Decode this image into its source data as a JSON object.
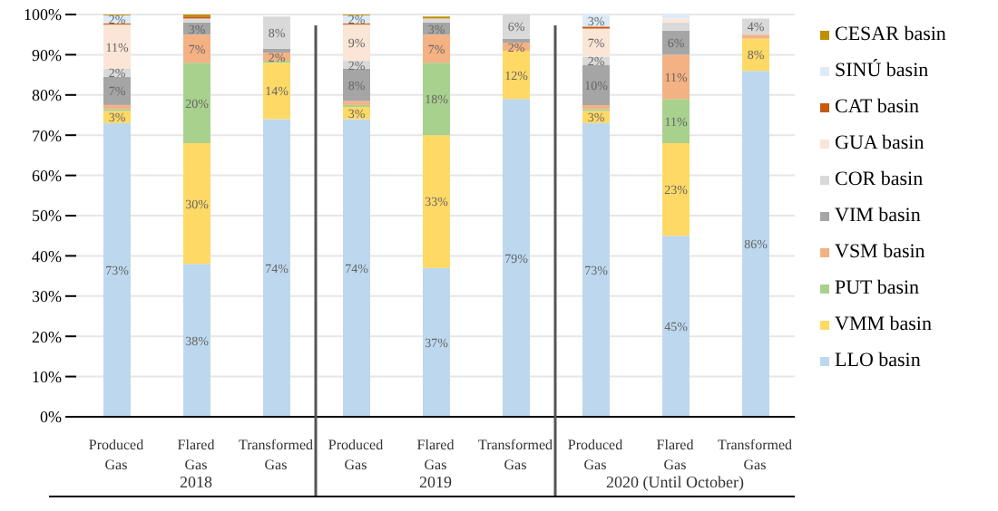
{
  "chart_data": {
    "type": "bar",
    "stacked": true,
    "categories": [
      "Produced Gas",
      "Flared Gas",
      "Transformed Gas",
      "Produced Gas",
      "Flared Gas",
      "Transformed Gas",
      "Produced Gas",
      "Flared Gas",
      "Transformed Gas"
    ],
    "annotations": [
      "2018",
      "2019",
      "2020 (Until October)"
    ],
    "series": [
      {
        "name": "LLO basin",
        "color": "#bdd7ee",
        "values": [
          73,
          38,
          74,
          74,
          37,
          79,
          73,
          45,
          86
        ],
        "value_labels": [
          "73%",
          "38%",
          "74%",
          "74%",
          "37%",
          "79%",
          "73%",
          "45%",
          "86%"
        ]
      },
      {
        "name": "VMM basin",
        "color": "#ffd966",
        "values": [
          3,
          30,
          14,
          3,
          33,
          12,
          3,
          23,
          8
        ],
        "value_labels": [
          "3%",
          "30%",
          "14%",
          "3%",
          "33%",
          "12%",
          "3%",
          "23%",
          "8%"
        ]
      },
      {
        "name": "PUT basin",
        "color": "#a9d18e",
        "values": [
          0.5,
          20,
          0.5,
          0.5,
          18,
          0,
          0.5,
          11,
          0
        ],
        "value_labels": [
          null,
          "20%",
          null,
          null,
          "18%",
          null,
          null,
          "11%",
          null
        ]
      },
      {
        "name": "VSM basin",
        "color": "#f4b183",
        "values": [
          1,
          7,
          2,
          1,
          7,
          2,
          1,
          11,
          1
        ],
        "value_labels": [
          null,
          "7%",
          "2%",
          null,
          "7%",
          "2%",
          null,
          "11%",
          null
        ]
      },
      {
        "name": "VIM basin",
        "color": "#a5a5a5",
        "values": [
          7,
          3,
          1,
          8,
          3,
          1,
          10,
          6,
          null
        ],
        "value_labels": [
          "7%",
          "3%",
          null,
          "8%",
          "3%",
          null,
          "10%",
          "6%",
          null
        ]
      },
      {
        "name": "COR basin",
        "color": "#d9d9d9",
        "values": [
          2,
          1,
          8,
          2,
          1,
          6,
          2,
          2,
          4
        ],
        "value_labels": [
          "2%",
          null,
          "8%",
          "2%",
          null,
          "6%",
          "2%",
          null,
          "4%"
        ]
      },
      {
        "name": "GUA basin",
        "color": "#fbe5d6",
        "values": [
          11,
          0,
          null,
          9,
          null,
          0,
          7,
          1,
          null
        ],
        "value_labels": [
          "11%",
          null,
          null,
          "9%",
          null,
          null,
          "7%",
          null,
          null
        ]
      },
      {
        "name": "CAT basin",
        "color": "#c55a11",
        "values": [
          0.3,
          0.5,
          0,
          0.3,
          0,
          0,
          0.5,
          0,
          0
        ],
        "value_labels": [
          null,
          null,
          null,
          null,
          null,
          null,
          null,
          null,
          null
        ]
      },
      {
        "name": "SINÚ basin",
        "color": "#deebf7",
        "values": [
          2,
          0,
          0,
          2,
          0,
          0,
          3,
          1,
          0
        ],
        "value_labels": [
          "2%",
          null,
          null,
          "2%",
          null,
          null,
          "3%",
          null,
          null
        ]
      },
      {
        "name": "CESAR basin",
        "color": "#bf9000",
        "values": [
          0.2,
          0.5,
          0,
          0.2,
          0.5,
          0,
          0,
          0,
          0
        ],
        "value_labels": [
          null,
          null,
          null,
          null,
          null,
          null,
          null,
          null,
          null
        ]
      }
    ],
    "ylim": [
      0,
      100
    ],
    "yticks": [
      {
        "value": 0,
        "label": "0%"
      },
      {
        "value": 10,
        "label": "10%"
      },
      {
        "value": 20,
        "label": "20%"
      },
      {
        "value": 30,
        "label": "30%"
      },
      {
        "value": 40,
        "label": "40%"
      },
      {
        "value": 50,
        "label": "50%"
      },
      {
        "value": 60,
        "label": "60%"
      },
      {
        "value": 70,
        "label": "70%"
      },
      {
        "value": 80,
        "label": "80%"
      },
      {
        "value": 90,
        "label": "90%"
      },
      {
        "value": 100,
        "label": "100%"
      }
    ],
    "grid": "y",
    "legend": "right"
  }
}
